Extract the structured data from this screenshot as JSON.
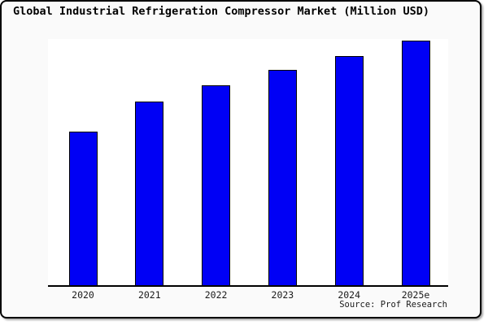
{
  "title": "Global Industrial Refrigeration Compressor Market (Million USD)",
  "source": "Source: Prof Research",
  "colors": {
    "background": "#fafafa",
    "plot_background": "#ffffff",
    "bar_fill": "#0000f5",
    "bar_outline": "#000000",
    "axis": "#000000",
    "frame_border": "#000000"
  },
  "chart_data": {
    "type": "bar",
    "title": "Global Industrial Refrigeration Compressor Market (Million USD)",
    "categories": [
      "2020",
      "2021",
      "2022",
      "2023",
      "2024",
      "2025e"
    ],
    "values": [
      62.8,
      75.1,
      81.6,
      87.9,
      93.7,
      100
    ],
    "values_note": "y-axis has no ticks or labels in the chart; values are relative bar heights indexed to 2025e = 100",
    "xlabel": "",
    "ylabel": "",
    "ylim": [
      0,
      100
    ],
    "grid": false,
    "legend": false,
    "bar_color": "#0000f5",
    "source_note": "Source: Prof Research"
  }
}
